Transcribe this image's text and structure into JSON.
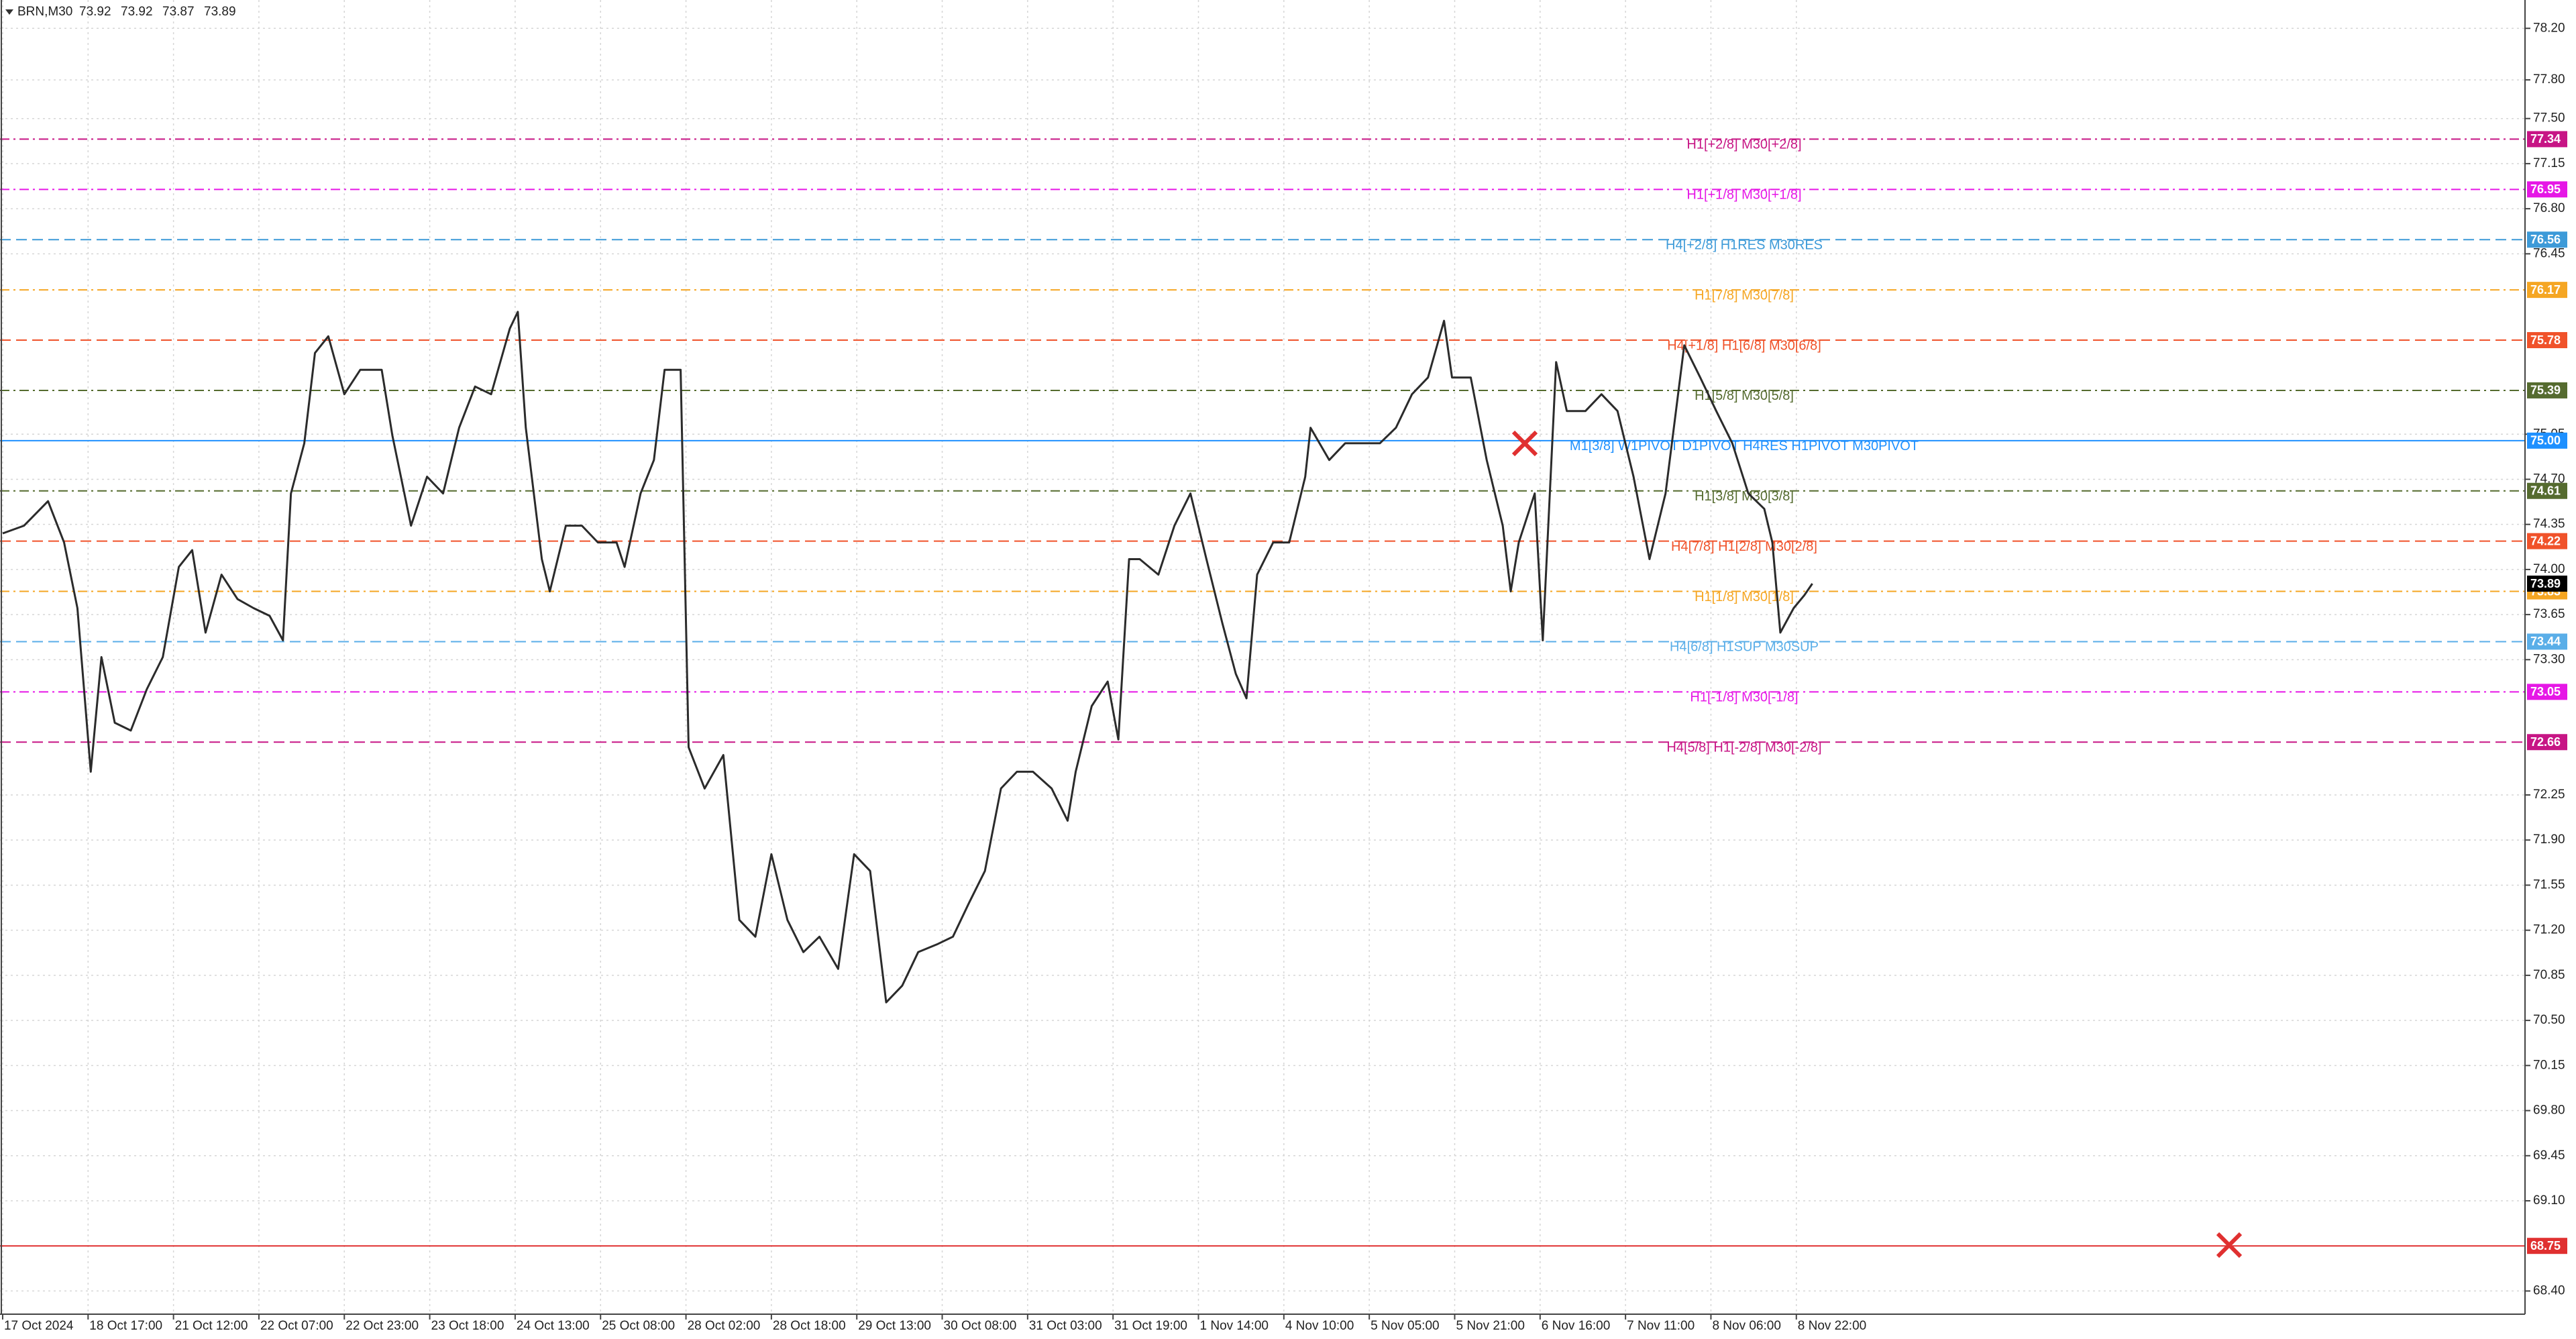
{
  "chart_data": {
    "type": "line",
    "symbol": "BRN,M30",
    "quote": [
      73.92,
      73.92,
      73.87,
      73.89
    ],
    "color": "#2b2b2b",
    "grid": true,
    "xlim": [
      -1,
      945
    ],
    "ylim": [
      68.22,
      78.42
    ],
    "xticks": [
      {
        "value": 0,
        "label": "17 Oct 2024"
      },
      {
        "value": 32,
        "label": "18 Oct 17:00"
      },
      {
        "value": 64,
        "label": "21 Oct 12:00"
      },
      {
        "value": 96,
        "label": "22 Oct 07:00"
      },
      {
        "value": 128,
        "label": "22 Oct 23:00"
      },
      {
        "value": 160,
        "label": "23 Oct 18:00"
      },
      {
        "value": 192,
        "label": "24 Oct 13:00"
      },
      {
        "value": 224,
        "label": "25 Oct 08:00"
      },
      {
        "value": 256,
        "label": "28 Oct 02:00"
      },
      {
        "value": 288,
        "label": "28 Oct 18:00"
      },
      {
        "value": 320,
        "label": "29 Oct 13:00"
      },
      {
        "value": 352,
        "label": "30 Oct 08:00"
      },
      {
        "value": 384,
        "label": "31 Oct 03:00"
      },
      {
        "value": 416,
        "label": "31 Oct 19:00"
      },
      {
        "value": 448,
        "label": "1 Nov 14:00"
      },
      {
        "value": 480,
        "label": "4 Nov 10:00"
      },
      {
        "value": 512,
        "label": "5 Nov 05:00"
      },
      {
        "value": 544,
        "label": "5 Nov 21:00"
      },
      {
        "value": 576,
        "label": "6 Nov 16:00"
      },
      {
        "value": 608,
        "label": "7 Nov 11:00"
      },
      {
        "value": 640,
        "label": "8 Nov 06:00"
      },
      {
        "value": 672,
        "label": "8 Nov 22:00"
      }
    ],
    "yticks": [
      {
        "value": 78.2,
        "label": "78.20"
      },
      {
        "value": 77.8,
        "label": "77.80"
      },
      {
        "value": 77.5,
        "label": "77.50"
      },
      {
        "value": 77.15,
        "label": "77.15"
      },
      {
        "value": 76.8,
        "label": "76.80"
      },
      {
        "value": 76.45,
        "label": "76.45"
      },
      {
        "value": 75.05,
        "label": "75.05"
      },
      {
        "value": 74.7,
        "label": "74.70"
      },
      {
        "value": 74.35,
        "label": "74.35"
      },
      {
        "value": 74,
        "label": "74.00"
      },
      {
        "value": 73.65,
        "label": "73.65"
      },
      {
        "value": 73.3,
        "label": "73.30"
      },
      {
        "value": 72.25,
        "label": "72.25"
      },
      {
        "value": 71.9,
        "label": "71.90"
      },
      {
        "value": 71.55,
        "label": "71.55"
      },
      {
        "value": 71.2,
        "label": "71.20"
      },
      {
        "value": 70.85,
        "label": "70.85"
      },
      {
        "value": 70.5,
        "label": "70.50"
      },
      {
        "value": 70.15,
        "label": "70.15"
      },
      {
        "value": 69.8,
        "label": "69.80"
      },
      {
        "value": 69.45,
        "label": "69.45"
      },
      {
        "value": 69.1,
        "label": "69.10"
      },
      {
        "value": 68.4,
        "label": "68.40"
      }
    ],
    "x": [
      0,
      8,
      17,
      23,
      28,
      33,
      37,
      42,
      48,
      54,
      60,
      66,
      71,
      76,
      82,
      88,
      94,
      100,
      105,
      108,
      113,
      117,
      122,
      128,
      134,
      142,
      146,
      153,
      159,
      165,
      171,
      177,
      183,
      190,
      193,
      196,
      202,
      205,
      211,
      217,
      223,
      230,
      233,
      239,
      244,
      248,
      254,
      257,
      263,
      270,
      276,
      282,
      288,
      294,
      300,
      306,
      313,
      319,
      325,
      331,
      337,
      343,
      350,
      356,
      362,
      368,
      374,
      380,
      386,
      393,
      399,
      402,
      408,
      414,
      418,
      422,
      426,
      433,
      439,
      445,
      451,
      457,
      462,
      466,
      470,
      476,
      482,
      488,
      490,
      497,
      503,
      510,
      516,
      522,
      528,
      534,
      540,
      543,
      550,
      556,
      562,
      565,
      568,
      574,
      577,
      582,
      586,
      593,
      599,
      605,
      611,
      617,
      623,
      630,
      636,
      642,
      648,
      654,
      660,
      663,
      666,
      671,
      675,
      678
    ],
    "values": [
      74.28,
      74.34,
      74.53,
      74.21,
      73.7,
      72.43,
      73.32,
      72.81,
      72.75,
      73.07,
      73.32,
      74.02,
      74.15,
      73.51,
      73.96,
      73.77,
      73.7,
      73.64,
      73.45,
      74.59,
      74.98,
      75.68,
      75.81,
      75.36,
      75.55,
      75.55,
      75.04,
      74.34,
      74.72,
      74.59,
      75.1,
      75.42,
      75.36,
      75.87,
      76.0,
      75.1,
      74.08,
      73.83,
      74.34,
      74.34,
      74.21,
      74.21,
      74.02,
      74.59,
      74.85,
      75.55,
      75.55,
      72.62,
      72.3,
      72.56,
      71.28,
      71.15,
      71.79,
      71.28,
      71.03,
      71.15,
      70.9,
      71.79,
      71.66,
      70.64,
      70.77,
      71.03,
      71.09,
      71.15,
      71.41,
      71.66,
      72.3,
      72.43,
      72.43,
      72.3,
      72.05,
      72.43,
      72.94,
      73.13,
      72.68,
      74.08,
      74.08,
      73.96,
      74.34,
      74.59,
      74.08,
      73.58,
      73.19,
      73.0,
      73.96,
      74.21,
      74.21,
      74.72,
      75.1,
      74.85,
      74.98,
      74.98,
      74.98,
      75.1,
      75.36,
      75.49,
      75.93,
      75.49,
      75.49,
      74.85,
      74.34,
      73.83,
      74.21,
      74.59,
      73.45,
      75.61,
      75.23,
      75.23,
      75.36,
      75.23,
      74.72,
      74.08,
      74.59,
      75.74,
      75.49,
      75.23,
      74.98,
      74.59,
      74.47,
      74.21,
      73.51,
      73.7,
      73.8,
      73.89
    ],
    "levels": {
      "names": [
        "H1[+2/8] M30[+2/8]",
        "H1[+1/8] M30[+1/8]",
        "H4[+2/8] H1RES M30RES",
        "H1[7/8] M30[7/8]",
        "H4[+1/8] H1[6/8] M30[6/8]",
        "H1[5/8] M30[5/8]",
        "M1[3/8] W1PIVOT D1PIVOT H4RES H1PIVOT M30PIVOT",
        "H1[3/8] M30[3/8]",
        "H4[7/8] H1[2/8] M30[2/8]",
        "H1[1/8] M30[1/8]",
        "H4[6/8] H1SUP M30SUP",
        "H1[-1/8] M30[-1/8]",
        "H4[5/8] H1[-2/8] M30[-2/8]",
        null
      ],
      "values": [
        77.34,
        76.95,
        76.56,
        76.17,
        75.78,
        75.39,
        75.0,
        74.61,
        74.22,
        73.83,
        73.44,
        73.05,
        72.66,
        68.75
      ],
      "value_labels": [
        "77.34",
        "76.95",
        "76.56",
        "76.17",
        "75.78",
        "75.39",
        "75.00",
        "74.61",
        "74.22",
        "73.83",
        "73.44",
        "73.05",
        "72.66",
        "68.75"
      ],
      "colors": [
        "#c71585",
        "#e617e6",
        "#3d9ad8",
        "#f5a623",
        "#f0522a",
        "#556b2f",
        "#1e90ff",
        "#556b2f",
        "#f0522a",
        "#f5a623",
        "#5aaee8",
        "#e617e6",
        "#c71585",
        "#e03030"
      ],
      "styles": [
        "dashdot",
        "dashdot",
        "dashed",
        "dashdot",
        "dashed",
        "dashdot",
        "solid",
        "dashdot",
        "dashed",
        "dashdot",
        "dashed",
        "dashdot",
        "dashed",
        "solid"
      ]
    }
  }
}
